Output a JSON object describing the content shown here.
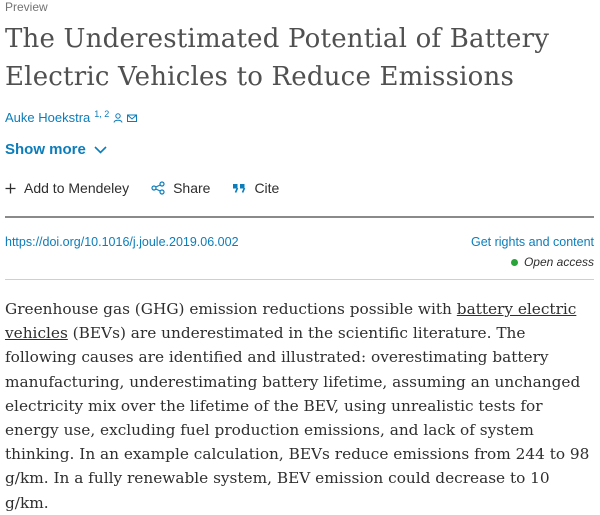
{
  "header": {
    "preview_label": "Preview"
  },
  "article": {
    "title": "The Underestimated Potential of Battery Electric Vehicles to Reduce Emissions",
    "author": {
      "name": "Auke Hoekstra",
      "affiliations": "1, 2"
    },
    "show_more_label": "Show more"
  },
  "actions": {
    "mendeley_label": "Add to Mendeley",
    "share_label": "Share",
    "cite_label": "Cite"
  },
  "links": {
    "doi": "https://doi.org/10.1016/j.joule.2019.06.002",
    "rights": "Get rights and content",
    "open_access": "Open access"
  },
  "abstract": {
    "part1": "Greenhouse gas (GHG) emission reductions possible with ",
    "link_text": "battery electric vehicles",
    "part2": " (BEVs) are underestimated in the scientific literature. The following causes are identified and illustrated: overestimating battery manufacturing, underestimating battery lifetime, assuming an unchanged electricity mix over the lifetime of the BEV, using unrealistic tests for energy use, excluding fuel production emissions, and lack of system thinking. In an example calculation, BEVs reduce emissions from 244 to 98 g/km. In a fully renewable system, BEV emission could decrease to 10 g/km."
  },
  "colors": {
    "link": "#0c7dbb",
    "open_access_dot": "#29a33a"
  }
}
